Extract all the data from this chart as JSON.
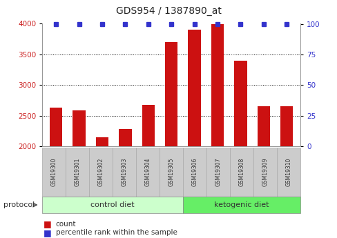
{
  "title": "GDS954 / 1387890_at",
  "samples": [
    "GSM19300",
    "GSM19301",
    "GSM19302",
    "GSM19303",
    "GSM19304",
    "GSM19305",
    "GSM19306",
    "GSM19307",
    "GSM19308",
    "GSM19309",
    "GSM19310"
  ],
  "counts": [
    2630,
    2590,
    2150,
    2280,
    2680,
    3700,
    3900,
    4000,
    3400,
    2660,
    2660
  ],
  "percentile_ranks": [
    100,
    100,
    100,
    100,
    100,
    100,
    100,
    100,
    100,
    100,
    100
  ],
  "bar_color": "#cc1111",
  "dot_color": "#3333cc",
  "ylim_left": [
    2000,
    4000
  ],
  "ylim_right": [
    0,
    100
  ],
  "yticks_left": [
    2000,
    2500,
    3000,
    3500,
    4000
  ],
  "yticks_right": [
    0,
    25,
    50,
    75,
    100
  ],
  "control_diet_count": 6,
  "ketogenic_diet_count": 5,
  "group_label": "protocol",
  "legend_count_label": "count",
  "legend_pct_label": "percentile rank within the sample",
  "bar_bottom": 2000,
  "bg_color": "#ffffff",
  "tick_label_color_left": "#cc2222",
  "tick_label_color_right": "#3333cc",
  "grid_color": "#000000",
  "sample_bg_color": "#cccccc",
  "control_color": "#ccffcc",
  "ketogenic_color": "#66ee66"
}
